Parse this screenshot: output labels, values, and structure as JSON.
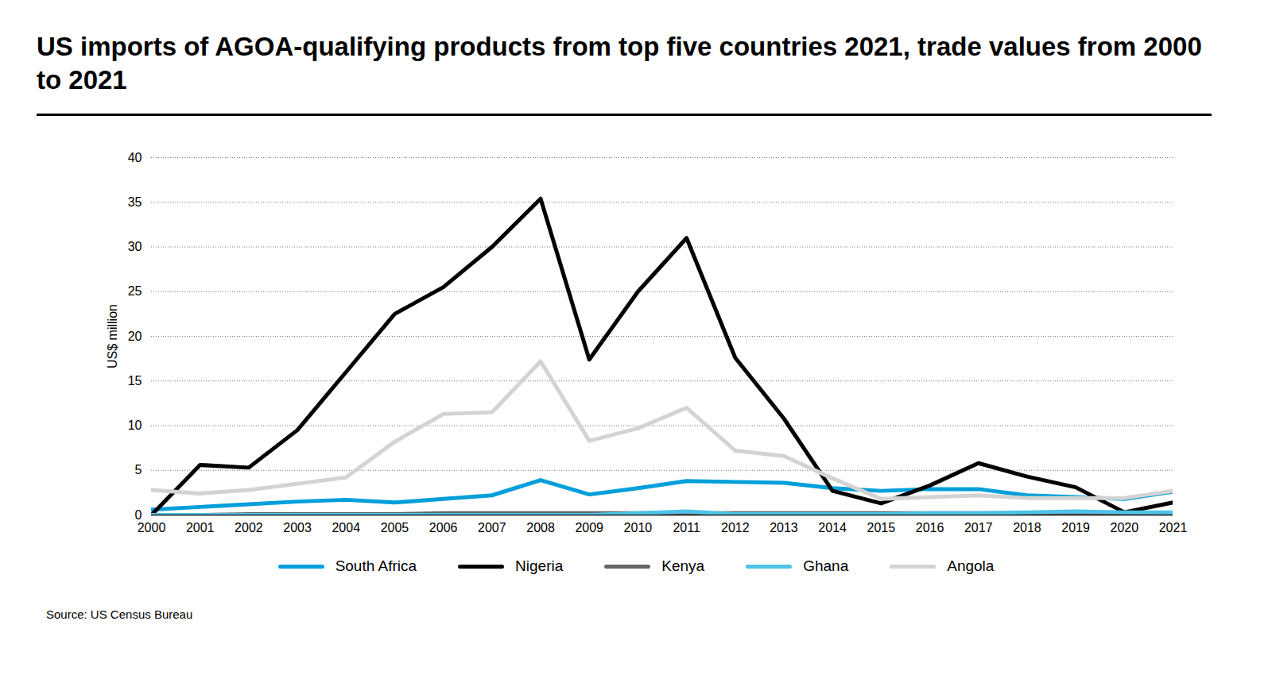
{
  "chart_data": {
    "type": "line",
    "title": "US imports of AGOA-qualifying products from top five countries 2021, trade values from 2000 to 2021",
    "y_label": "US$ million",
    "source": "Source: US Census Bureau",
    "x": [
      2000,
      2001,
      2002,
      2003,
      2004,
      2005,
      2006,
      2007,
      2008,
      2009,
      2010,
      2011,
      2012,
      2013,
      2014,
      2015,
      2016,
      2017,
      2018,
      2019,
      2020,
      2021
    ],
    "xlim": [
      2000,
      2021
    ],
    "xticks": [
      2000,
      2001,
      2002,
      2003,
      2004,
      2005,
      2006,
      2007,
      2008,
      2009,
      2010,
      2011,
      2012,
      2013,
      2014,
      2015,
      2016,
      2017,
      2018,
      2019,
      2020,
      2021
    ],
    "ylim": [
      0,
      40
    ],
    "yticks": [
      0,
      5,
      10,
      15,
      20,
      25,
      30,
      35,
      40
    ],
    "grid": true,
    "legend": "bottom",
    "series": [
      {
        "name": "South Africa",
        "color": "#009fda",
        "values": [
          0.6,
          0.9,
          1.2,
          1.5,
          1.7,
          1.4,
          1.8,
          2.2,
          3.9,
          2.3,
          3.0,
          3.8,
          3.7,
          3.6,
          3.0,
          2.7,
          2.9,
          2.9,
          2.2,
          2.0,
          1.8,
          2.6
        ]
      },
      {
        "name": "Nigeria",
        "color": "#000000",
        "values": [
          0,
          5.6,
          5.3,
          9.5,
          16,
          22.5,
          25.5,
          30,
          35.4,
          17.4,
          25,
          31,
          17.6,
          10.8,
          2.7,
          1.3,
          3.3,
          5.8,
          4.3,
          3.1,
          0.3,
          1.4
        ]
      },
      {
        "name": "Kenya",
        "color": "#666666",
        "values": [
          0,
          0,
          0.1,
          0.1,
          0.1,
          0.1,
          0.2,
          0.2,
          0.2,
          0.2,
          0.2,
          0.2,
          0.2,
          0.2,
          0.2,
          0.2,
          0.2,
          0.2,
          0.2,
          0.2,
          0.2,
          0.2
        ]
      },
      {
        "name": "Ghana",
        "color": "#4dc3e8",
        "values": [
          0,
          0,
          0,
          0,
          0,
          0,
          0,
          0,
          0,
          0,
          0.2,
          0.4,
          0.1,
          0.1,
          0.1,
          0.1,
          0.2,
          0.2,
          0.3,
          0.4,
          0.3,
          0.3
        ]
      },
      {
        "name": "Angola",
        "color": "#d3d3d3",
        "values": [
          2.8,
          2.4,
          2.8,
          3.5,
          4.2,
          8.2,
          11.3,
          11.5,
          17.2,
          8.3,
          9.7,
          12,
          7.2,
          6.6,
          4.1,
          1.8,
          2.0,
          2.2,
          1.9,
          1.9,
          1.9,
          2.7
        ]
      }
    ]
  }
}
